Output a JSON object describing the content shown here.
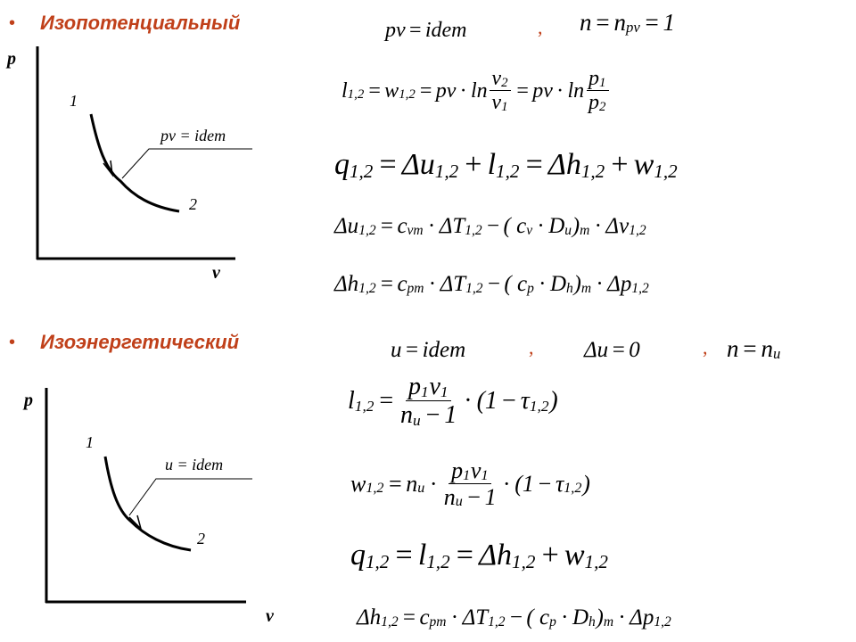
{
  "section1": {
    "bullet": "•",
    "title": "Изопотенциальный",
    "graph": {
      "y_axis": "p",
      "x_axis": "v",
      "point1": "1",
      "point2": "2",
      "curve_label": "pv = idem"
    },
    "separator": ",",
    "formulas": {
      "cond1": [
        [
          "pv"
        ],
        [
          "=",
          "op"
        ],
        [
          "idem"
        ]
      ],
      "cond2": [
        [
          "n"
        ],
        [
          "=",
          "op"
        ],
        [
          "n"
        ],
        [
          "pv",
          "sub"
        ],
        [
          "=",
          "op"
        ],
        [
          "1"
        ]
      ],
      "l": [
        [
          "l"
        ],
        [
          "1,2",
          "sub"
        ],
        [
          "=",
          "op"
        ],
        [
          "w"
        ],
        [
          "1,2",
          "sub"
        ],
        [
          "=",
          "op"
        ],
        [
          "pv"
        ],
        [
          "·",
          "op"
        ],
        [
          "ln"
        ],
        {
          "num": [
            [
              "v"
            ],
            [
              "2",
              "sub"
            ]
          ],
          "den": [
            [
              "v"
            ],
            [
              "1",
              "sub"
            ]
          ]
        },
        [
          "=",
          "op"
        ],
        [
          "pv"
        ],
        [
          "·",
          "op"
        ],
        [
          "ln"
        ],
        {
          "num": [
            [
              "p"
            ],
            [
              "1",
              "sub"
            ]
          ],
          "den": [
            [
              "p"
            ],
            [
              "2",
              "sub"
            ]
          ]
        }
      ],
      "q": [
        [
          "q"
        ],
        [
          "1,2",
          "sub"
        ],
        [
          "=",
          "op"
        ],
        [
          "Δu"
        ],
        [
          "1,2",
          "sub"
        ],
        [
          "+",
          "op"
        ],
        [
          "l"
        ],
        [
          "1,2",
          "sub"
        ],
        [
          "=",
          "op"
        ],
        [
          "Δh"
        ],
        [
          "1,2",
          "sub"
        ],
        [
          "+",
          "op"
        ],
        [
          "w"
        ],
        [
          "1,2",
          "sub"
        ]
      ],
      "du": [
        [
          "Δu"
        ],
        [
          "1,2",
          "sub"
        ],
        [
          "=",
          "op"
        ],
        [
          "c"
        ],
        [
          "vm",
          "sub"
        ],
        [
          "·",
          "op"
        ],
        [
          "ΔT"
        ],
        [
          "1,2",
          "sub"
        ],
        [
          "−",
          "op"
        ],
        [
          "( c"
        ],
        [
          "v",
          "sub"
        ],
        [
          "·",
          "op"
        ],
        [
          "D"
        ],
        [
          "u",
          "sub"
        ],
        [
          ")"
        ],
        [
          "m",
          "sub"
        ],
        [
          "·",
          "op"
        ],
        [
          "Δv"
        ],
        [
          "1,2",
          "sub"
        ]
      ],
      "dh": [
        [
          "Δh"
        ],
        [
          "1,2",
          "sub"
        ],
        [
          "=",
          "op"
        ],
        [
          "c"
        ],
        [
          "pm",
          "sub"
        ],
        [
          "·",
          "op"
        ],
        [
          "ΔT"
        ],
        [
          "1,2",
          "sub"
        ],
        [
          "−",
          "op"
        ],
        [
          "( c"
        ],
        [
          "p",
          "sub"
        ],
        [
          "·",
          "op"
        ],
        [
          "D"
        ],
        [
          "h",
          "sub"
        ],
        [
          ")"
        ],
        [
          "m",
          "sub"
        ],
        [
          "·",
          "op"
        ],
        [
          "Δp"
        ],
        [
          "1,2",
          "sub"
        ]
      ]
    }
  },
  "section2": {
    "bullet": "•",
    "title": "Изоэнергетический",
    "graph": {
      "y_axis": "p",
      "x_axis": "v",
      "point1": "1",
      "point2": "2",
      "curve_label": "u = idem"
    },
    "separator": ",",
    "formulas": {
      "cond1": [
        [
          "u"
        ],
        [
          "=",
          "op"
        ],
        [
          "idem"
        ]
      ],
      "cond2": [
        [
          "Δu"
        ],
        [
          "=",
          "op"
        ],
        [
          "0"
        ]
      ],
      "cond3": [
        [
          "n"
        ],
        [
          "=",
          "op"
        ],
        [
          "n"
        ],
        [
          "u",
          "sub"
        ]
      ],
      "l": [
        [
          "l"
        ],
        [
          "1,2",
          "sub"
        ],
        [
          "=",
          "op"
        ],
        {
          "num": [
            [
              "p"
            ],
            [
              "1",
              "sub"
            ],
            [
              "v"
            ],
            [
              "1",
              "sub"
            ]
          ],
          "den": [
            [
              "n"
            ],
            [
              "u",
              "sub"
            ],
            [
              "−",
              "op"
            ],
            [
              "1"
            ]
          ]
        },
        [
          "·",
          "op"
        ],
        [
          "(1"
        ],
        [
          "−",
          "op"
        ],
        [
          "τ"
        ],
        [
          "1,2",
          "sub"
        ],
        [
          ")"
        ]
      ],
      "w": [
        [
          "w"
        ],
        [
          "1,2",
          "sub"
        ],
        [
          "=",
          "op"
        ],
        [
          "n"
        ],
        [
          "u",
          "sub"
        ],
        [
          "·",
          "op"
        ],
        {
          "num": [
            [
              "p"
            ],
            [
              "1",
              "sub"
            ],
            [
              "v"
            ],
            [
              "1",
              "sub"
            ]
          ],
          "den": [
            [
              "n"
            ],
            [
              "u",
              "sub"
            ],
            [
              "−",
              "op"
            ],
            [
              "1"
            ]
          ]
        },
        [
          "·",
          "op"
        ],
        [
          "(1"
        ],
        [
          "−",
          "op"
        ],
        [
          "τ"
        ],
        [
          "1,2",
          "sub"
        ],
        [
          ")"
        ]
      ],
      "q": [
        [
          "q"
        ],
        [
          "1,2",
          "sub"
        ],
        [
          "=",
          "op"
        ],
        [
          "l"
        ],
        [
          "1,2",
          "sub"
        ],
        [
          "=",
          "op"
        ],
        [
          "Δh"
        ],
        [
          "1,2",
          "sub"
        ],
        [
          "+",
          "op"
        ],
        [
          "w"
        ],
        [
          "1,2",
          "sub"
        ]
      ],
      "dh": [
        [
          "Δh"
        ],
        [
          "1,2",
          "sub"
        ],
        [
          "=",
          "op"
        ],
        [
          "c"
        ],
        [
          "pm",
          "sub"
        ],
        [
          "·",
          "op"
        ],
        [
          "ΔT"
        ],
        [
          "1,2",
          "sub"
        ],
        [
          "−",
          "op"
        ],
        [
          "( c"
        ],
        [
          "p",
          "sub"
        ],
        [
          "·",
          "op"
        ],
        [
          "D"
        ],
        [
          "h",
          "sub"
        ],
        [
          ")"
        ],
        [
          "m",
          "sub"
        ],
        [
          "·",
          "op"
        ],
        [
          "Δp"
        ],
        [
          "1,2",
          "sub"
        ]
      ]
    }
  },
  "colors": {
    "accent": "#c0401a",
    "text": "#000000"
  }
}
